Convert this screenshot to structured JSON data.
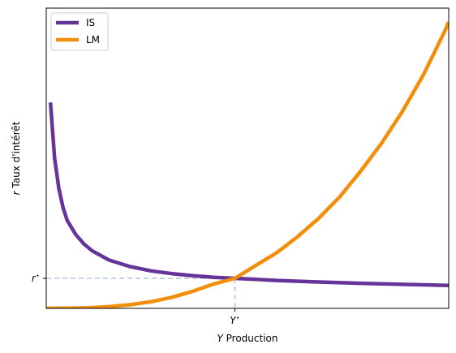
{
  "chart_data": {
    "type": "line",
    "xlabel_var": "Y",
    "xlabel_text": " Production",
    "ylabel_var": "r",
    "ylabel_text": " Taux d'intérêt",
    "xlim": [
      0.05,
      1.01
    ],
    "ylim": [
      0,
      1.4
    ],
    "x_ticks": [
      {
        "value": 0.5,
        "label": "Y",
        "sup": "⋆"
      }
    ],
    "y_ticks": [
      {
        "value": 0.14,
        "label": "r",
        "sup": "⋆"
      }
    ],
    "grid": false,
    "legend_position": "top-left",
    "equilibrium": {
      "x": 0.5,
      "y": 0.14
    },
    "series": [
      {
        "name": "IS",
        "color": "#663399",
        "x": [
          0.06,
          0.07,
          0.08,
          0.09,
          0.1,
          0.12,
          0.14,
          0.16,
          0.2,
          0.25,
          0.3,
          0.35,
          0.4,
          0.45,
          0.5,
          0.55,
          0.6,
          0.7,
          0.8,
          0.9,
          1.01
        ],
        "y": [
          0.96,
          0.7,
          0.56,
          0.47,
          0.41,
          0.345,
          0.3,
          0.268,
          0.225,
          0.195,
          0.175,
          0.162,
          0.152,
          0.145,
          0.14,
          0.135,
          0.13,
          0.123,
          0.117,
          0.112,
          0.107
        ]
      },
      {
        "name": "LM",
        "color": "#f28e0c",
        "x": [
          0.05,
          0.1,
          0.15,
          0.2,
          0.25,
          0.3,
          0.35,
          0.4,
          0.45,
          0.5,
          0.55,
          0.6,
          0.65,
          0.7,
          0.75,
          0.8,
          0.85,
          0.9,
          0.95,
          1.0,
          1.01
        ],
        "y": [
          0.0,
          0.0008,
          0.003,
          0.008,
          0.017,
          0.031,
          0.052,
          0.08,
          0.114,
          0.14,
          0.2,
          0.26,
          0.335,
          0.42,
          0.52,
          0.64,
          0.77,
          0.92,
          1.09,
          1.29,
          1.335
        ]
      }
    ]
  }
}
